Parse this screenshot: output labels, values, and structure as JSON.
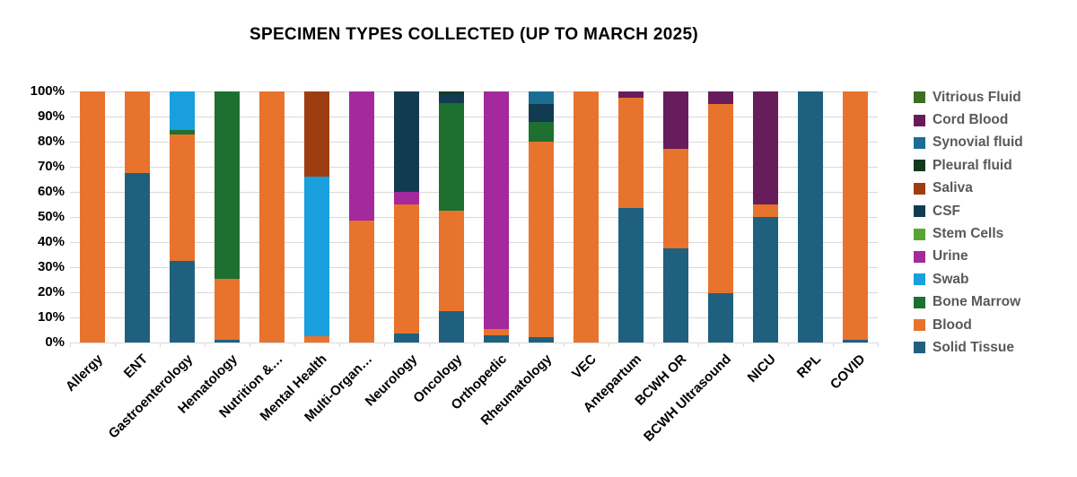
{
  "page": {
    "background": "#ffffff"
  },
  "chart_data": {
    "type": "bar",
    "subtype": "stacked-100-percent",
    "title": "SPECIMEN TYPES COLLECTED (UP TO MARCH 2025)",
    "xlabel": "",
    "ylabel": "",
    "grid": true,
    "legend_position": "right",
    "y_axis": {
      "min": 0,
      "max": 100,
      "step": 10,
      "tick_labels": [
        "0%",
        "10%",
        "20%",
        "30%",
        "40%",
        "50%",
        "60%",
        "70%",
        "80%",
        "90%",
        "100%"
      ]
    },
    "series_colors": {
      "Solid Tissue": "#1f607f",
      "Blood": "#e8732d",
      "Bone Marrow": "#1d7030",
      "Swab": "#189fdc",
      "Urine": "#a3299c",
      "Stem Cells": "#5ba433",
      "CSF": "#123b52",
      "Saliva": "#9e3d12",
      "Pleural fluid": "#14391d",
      "Synovial fluid": "#1b6e93",
      "Cord Blood": "#671d5b",
      "Vitrious Fluid": "#3d6e22"
    },
    "stack_order_bottom_to_top": [
      "Solid Tissue",
      "Blood",
      "Bone Marrow",
      "Swab",
      "Urine",
      "Stem Cells",
      "CSF",
      "Saliva",
      "Pleural fluid",
      "Synovial fluid",
      "Cord Blood",
      "Vitrious Fluid"
    ],
    "legend_top_to_bottom": [
      "Vitrious Fluid",
      "Cord Blood",
      "Synovial fluid",
      "Pleural fluid",
      "Saliva",
      "CSF",
      "Stem Cells",
      "Urine",
      "Swab",
      "Bone Marrow",
      "Blood",
      "Solid Tissue"
    ],
    "categories": [
      "Allergy",
      "ENT",
      "Gastroenterology",
      "Hematology",
      "Nutrition &…",
      "Mental Health",
      "Multi-Organ…",
      "Neurology",
      "Oncology",
      "Orthopedic",
      "Rheumatology",
      "VEC",
      "Antepartum",
      "BCWH OR",
      "BCWH Ultrasound",
      "NICU",
      "RPL",
      "COVID"
    ],
    "values": [
      {
        "category": "Allergy",
        "segments": [
          [
            "Blood",
            100
          ]
        ]
      },
      {
        "category": "ENT",
        "segments": [
          [
            "Solid Tissue",
            67.5
          ],
          [
            "Blood",
            32.5
          ]
        ]
      },
      {
        "category": "Gastroenterology",
        "segments": [
          [
            "Solid Tissue",
            32.5
          ],
          [
            "Blood",
            50.5
          ],
          [
            "Bone Marrow",
            1.5
          ],
          [
            "Swab",
            15.5
          ]
        ]
      },
      {
        "category": "Hematology",
        "segments": [
          [
            "Solid Tissue",
            1
          ],
          [
            "Blood",
            24.5
          ],
          [
            "Bone Marrow",
            74.5
          ]
        ]
      },
      {
        "category": "Nutrition &…",
        "segments": [
          [
            "Blood",
            100
          ]
        ]
      },
      {
        "category": "Mental Health",
        "segments": [
          [
            "Blood",
            2.5
          ],
          [
            "Swab",
            63.5
          ],
          [
            "Saliva",
            34
          ]
        ]
      },
      {
        "category": "Multi-Organ…",
        "segments": [
          [
            "Blood",
            48.5
          ],
          [
            "Urine",
            51.5
          ]
        ]
      },
      {
        "category": "Neurology",
        "segments": [
          [
            "Solid Tissue",
            3.5
          ],
          [
            "Blood",
            51.5
          ],
          [
            "Urine",
            5
          ],
          [
            "CSF",
            40
          ]
        ]
      },
      {
        "category": "Oncology",
        "segments": [
          [
            "Solid Tissue",
            12.5
          ],
          [
            "Blood",
            40
          ],
          [
            "Bone Marrow",
            43
          ],
          [
            "CSF",
            3.5
          ],
          [
            "Pleural fluid",
            1
          ]
        ]
      },
      {
        "category": "Orthopedic",
        "segments": [
          [
            "Solid Tissue",
            3
          ],
          [
            "Blood",
            2.5
          ],
          [
            "Urine",
            94.5
          ]
        ]
      },
      {
        "category": "Rheumatology",
        "segments": [
          [
            "Solid Tissue",
            2
          ],
          [
            "Blood",
            78
          ],
          [
            "Bone Marrow",
            8
          ],
          [
            "CSF",
            7
          ],
          [
            "Synovial fluid",
            5
          ]
        ]
      },
      {
        "category": "VEC",
        "segments": [
          [
            "Blood",
            100
          ]
        ]
      },
      {
        "category": "Antepartum",
        "segments": [
          [
            "Solid Tissue",
            53.5
          ],
          [
            "Blood",
            44
          ],
          [
            "Cord Blood",
            2.5
          ]
        ]
      },
      {
        "category": "BCWH OR",
        "segments": [
          [
            "Solid Tissue",
            37.5
          ],
          [
            "Blood",
            39.5
          ],
          [
            "Cord Blood",
            23
          ]
        ]
      },
      {
        "category": "BCWH Ultrasound",
        "segments": [
          [
            "Solid Tissue",
            19.5
          ],
          [
            "Blood",
            75.5
          ],
          [
            "Cord Blood",
            5
          ]
        ]
      },
      {
        "category": "NICU",
        "segments": [
          [
            "Solid Tissue",
            50
          ],
          [
            "Blood",
            5
          ],
          [
            "Cord Blood",
            45
          ]
        ]
      },
      {
        "category": "RPL",
        "segments": [
          [
            "Solid Tissue",
            100
          ]
        ]
      },
      {
        "category": "COVID",
        "segments": [
          [
            "Solid Tissue",
            1
          ],
          [
            "Blood",
            99
          ]
        ]
      }
    ]
  }
}
